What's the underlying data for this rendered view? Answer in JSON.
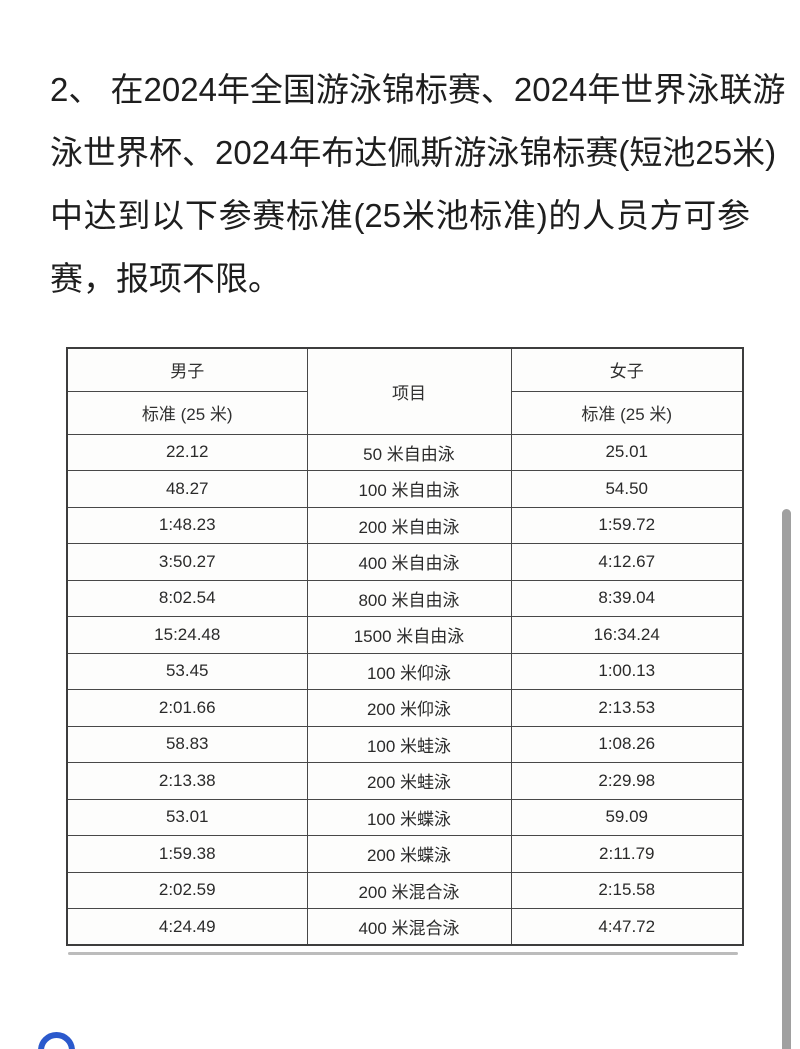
{
  "page": {
    "background_color": "#ffffff",
    "text_color": "#1e1e1e"
  },
  "paragraph": {
    "lines": [
      "2、 在2024年全国游泳锦标赛、2024年世界泳联游",
      "泳世界杯、2024年布达佩斯游泳锦标赛(短池25米)",
      "中达到以下参赛标准(25米池标准)的人员方可参",
      "赛，报项不限。"
    ]
  },
  "table": {
    "header": {
      "men_group": "男子",
      "men_sub": "标准 (25 米)",
      "event": "项目",
      "women_group": "女子",
      "women_sub": "标准 (25 米)"
    },
    "rows": [
      {
        "men": "22.12",
        "event": "50 米自由泳",
        "women": "25.01"
      },
      {
        "men": "48.27",
        "event": "100 米自由泳",
        "women": "54.50"
      },
      {
        "men": "1:48.23",
        "event": "200 米自由泳",
        "women": "1:59.72"
      },
      {
        "men": "3:50.27",
        "event": "400 米自由泳",
        "women": "4:12.67"
      },
      {
        "men": "8:02.54",
        "event": "800 米自由泳",
        "women": "8:39.04"
      },
      {
        "men": "15:24.48",
        "event": "1500 米自由泳",
        "women": "16:34.24"
      },
      {
        "men": "53.45",
        "event": "100 米仰泳",
        "women": "1:00.13"
      },
      {
        "men": "2:01.66",
        "event": "200 米仰泳",
        "women": "2:13.53"
      },
      {
        "men": "58.83",
        "event": "100 米蛙泳",
        "women": "1:08.26"
      },
      {
        "men": "2:13.38",
        "event": "200 米蛙泳",
        "women": "2:29.98"
      },
      {
        "men": "53.01",
        "event": "100 米蝶泳",
        "women": "59.09"
      },
      {
        "men": "1:59.38",
        "event": "200 米蝶泳",
        "women": "2:11.79"
      },
      {
        "men": "2:02.59",
        "event": "200 米混合泳",
        "women": "2:15.58"
      },
      {
        "men": "4:24.49",
        "event": "400 米混合泳",
        "women": "4:47.72"
      }
    ]
  },
  "decorations": {
    "spinner_icon": "loading-spinner-ring",
    "spinner_color": "#2b59cc",
    "scrollbar_color": "#a0a0a0",
    "table_border_color": "#3d3d3d"
  }
}
